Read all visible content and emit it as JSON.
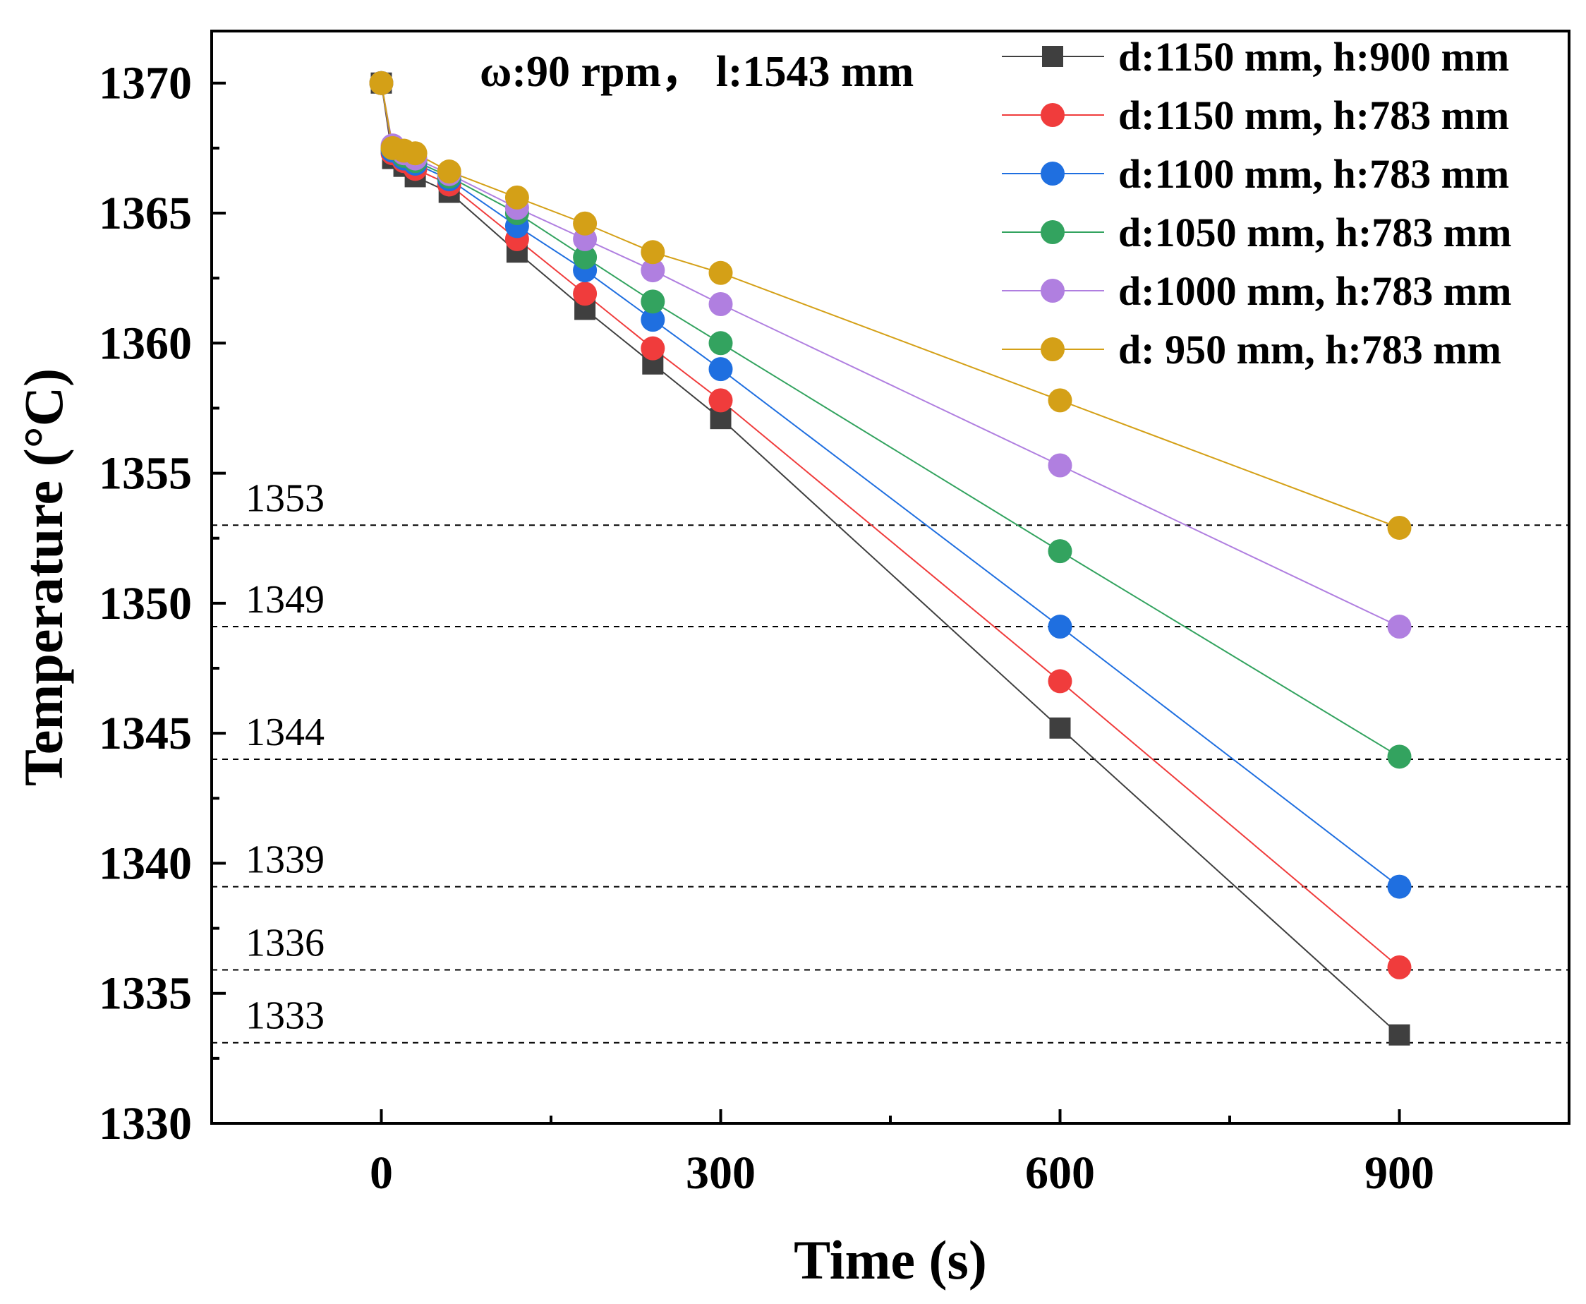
{
  "chart_data": {
    "type": "line",
    "xlabel": "Time (s)",
    "ylabel": "Temperature (°C)",
    "xlim": [
      -150,
      1050
    ],
    "ylim": [
      1330,
      1372
    ],
    "xticks": [
      0,
      300,
      600,
      900
    ],
    "xtick_labels": [
      "0",
      "300",
      "600",
      "900"
    ],
    "yticks": [
      1330,
      1335,
      1340,
      1345,
      1350,
      1355,
      1360,
      1365,
      1370
    ],
    "ytick_labels": [
      "1330",
      "1335",
      "1340",
      "1345",
      "1350",
      "1355",
      "1360",
      "1365",
      "1370"
    ],
    "annotation": "ω:90 rpm，  l:1543 mm",
    "legend_position": "top-right",
    "grid": false,
    "x": [
      0,
      10,
      20,
      30,
      60,
      120,
      180,
      240,
      300,
      600,
      900
    ],
    "series": [
      {
        "name": "d:1150 mm, h:900 mm",
        "marker": "square",
        "color": "#3f3f3f",
        "values": [
          1370,
          1367.1,
          1366.8,
          1366.4,
          1365.8,
          1363.5,
          1361.3,
          1359.2,
          1357.1,
          1345.2,
          1333.4
        ]
      },
      {
        "name": "d:1150 mm, h:783 mm",
        "marker": "circle",
        "color": "#f03c3c",
        "values": [
          1370,
          1367.3,
          1367.0,
          1366.7,
          1366.1,
          1364.0,
          1361.9,
          1359.8,
          1357.8,
          1347.0,
          1336.0
        ]
      },
      {
        "name": "d:1100 mm, h:783 mm",
        "marker": "circle",
        "color": "#1f6fe0",
        "values": [
          1370,
          1367.4,
          1367.1,
          1366.9,
          1366.3,
          1364.5,
          1362.8,
          1360.9,
          1359.0,
          1349.1,
          1339.1
        ]
      },
      {
        "name": "d:1050 mm, h:783 mm",
        "marker": "circle",
        "color": "#33a35f",
        "values": [
          1370,
          1367.5,
          1367.2,
          1367.0,
          1366.4,
          1365.0,
          1363.3,
          1361.6,
          1360.0,
          1352.0,
          1344.1
        ]
      },
      {
        "name": "d:1000 mm, h:783 mm",
        "marker": "circle",
        "color": "#b07fe0",
        "values": [
          1370,
          1367.6,
          1367.3,
          1367.1,
          1366.5,
          1365.2,
          1364.0,
          1362.8,
          1361.5,
          1355.3,
          1349.1
        ]
      },
      {
        "name": "d: 950 mm, h:783 mm",
        "marker": "circle",
        "color": "#d4a017",
        "values": [
          1370,
          1367.5,
          1367.4,
          1367.3,
          1366.6,
          1365.6,
          1364.6,
          1363.5,
          1362.7,
          1357.8,
          1352.9
        ]
      }
    ],
    "reference_lines": [
      {
        "label": "1353",
        "value": 1353
      },
      {
        "label": "1349",
        "value": 1349.1
      },
      {
        "label": "1344",
        "value": 1344
      },
      {
        "label": "1339",
        "value": 1339.1
      },
      {
        "label": "1336",
        "value": 1335.9
      },
      {
        "label": "1333",
        "value": 1333.1
      }
    ]
  }
}
